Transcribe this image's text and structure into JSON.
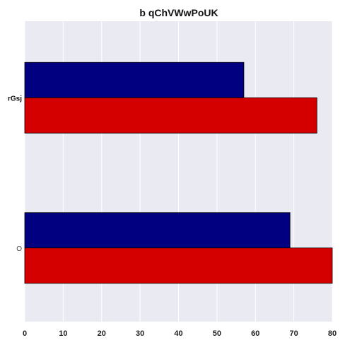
{
  "chart_data": {
    "type": "bar",
    "orientation": "horizontal",
    "title": "b qChVWwPoUK",
    "categories": [
      "rGsj",
      "O"
    ],
    "series": [
      {
        "color": "#000080",
        "values": [
          57,
          69
        ]
      },
      {
        "color": "#d40000",
        "values": [
          76,
          80
        ]
      }
    ],
    "xlim": [
      0,
      80
    ],
    "xticks": [
      0,
      10,
      20,
      30,
      40,
      50,
      60,
      70,
      80
    ],
    "xlabel": "",
    "ylabel": "",
    "grid": true,
    "background": "#eaeaf2"
  }
}
